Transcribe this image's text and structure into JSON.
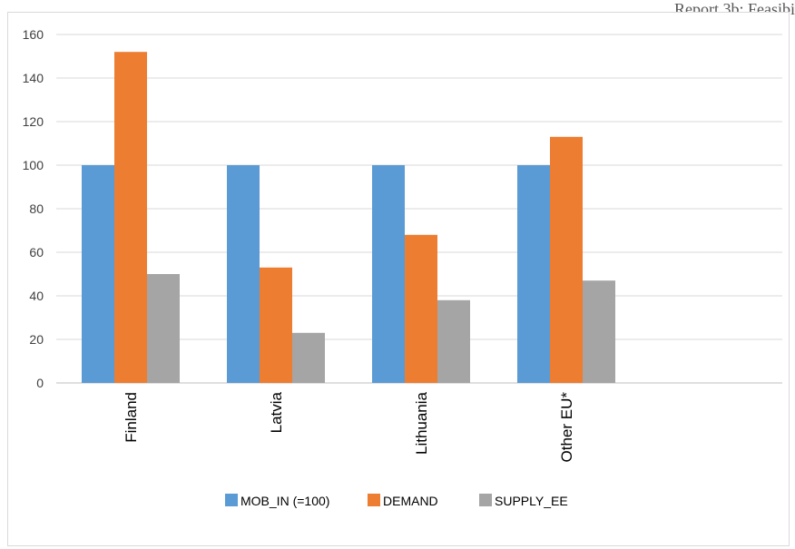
{
  "header": {
    "text": "Report 3b: Feasibi"
  },
  "chart_data": {
    "type": "bar",
    "categories": [
      "Finland",
      "Latvia",
      "Lithuania",
      "Other EU*"
    ],
    "series": [
      {
        "name": "MOB_IN (=100)",
        "color": "#5b9bd5",
        "values": [
          100,
          100,
          100,
          100
        ]
      },
      {
        "name": "DEMAND",
        "color": "#ed7d31",
        "values": [
          152,
          53,
          68,
          113
        ]
      },
      {
        "name": "SUPPLY_EE",
        "color": "#a5a5a5",
        "values": [
          50,
          23,
          38,
          47
        ]
      }
    ],
    "yticks": [
      "0",
      "20",
      "40",
      "60",
      "80",
      "100",
      "120",
      "140",
      "160"
    ],
    "ylim": [
      0,
      160
    ],
    "grid": true,
    "legend_position": "bottom"
  }
}
